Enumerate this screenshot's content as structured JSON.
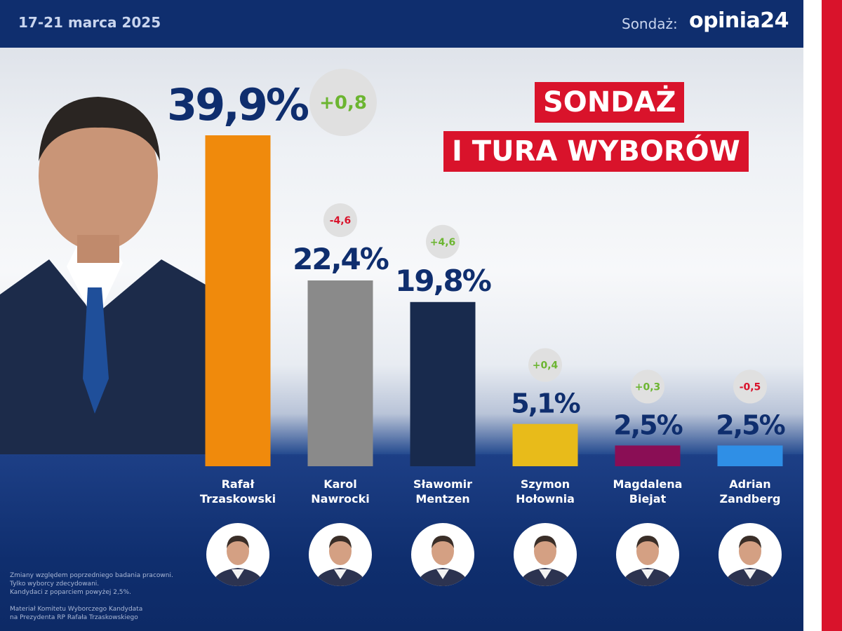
{
  "header": {
    "date": "17-21 marca 2025",
    "poll_label": "Sondaż:",
    "logo_text": "opinia24"
  },
  "title": {
    "line1": "SONDAŻ",
    "line2": "I TURA WYBORÓW"
  },
  "chart_data": {
    "type": "bar",
    "categories": [
      "Rafał Trzaskowski",
      "Karol Nawrocki",
      "Sławomir Mentzen",
      "Szymon Hołownia",
      "Magdalena Biejat",
      "Adrian Zandberg"
    ],
    "values": [
      39.9,
      22.4,
      19.8,
      5.1,
      2.5,
      2.5
    ],
    "value_labels": [
      "39,9%",
      "22,4%",
      "19,8%",
      "5,1%",
      "2,5%",
      "2,5%"
    ],
    "changes": [
      0.8,
      -4.6,
      4.6,
      0.4,
      0.3,
      -0.5
    ],
    "change_labels": [
      "+0,8",
      "-4,6",
      "+4,6",
      "+0,4",
      "+0,3",
      "-0,5"
    ],
    "name_lines": [
      [
        "Rafał",
        "Trzaskowski"
      ],
      [
        "Karol",
        "Nawrocki"
      ],
      [
        "Sławomir",
        "Mentzen"
      ],
      [
        "Szymon",
        "Hołownia"
      ],
      [
        "Magdalena",
        "Biejat"
      ],
      [
        "Adrian",
        "Zandberg"
      ]
    ],
    "colors": [
      "#f08a0c",
      "#8a8a8a",
      "#182a4d",
      "#e8bb1a",
      "#8a0e55",
      "#2f8fe6"
    ],
    "change_colors": {
      "positive": "#6cb531",
      "negative": "#d9132b"
    },
    "unit": "%"
  },
  "footnote": {
    "lines": [
      "Zmiany względem poprzedniego badania pracowni.",
      "Tylko wyborcy zdecydowani.",
      "Kandydaci z poparciem powyżej 2,5%.",
      "",
      "Materiał Komitetu Wyborczego Kandydata",
      "na Prezydenta RP Rafała Trzaskowskiego"
    ]
  }
}
